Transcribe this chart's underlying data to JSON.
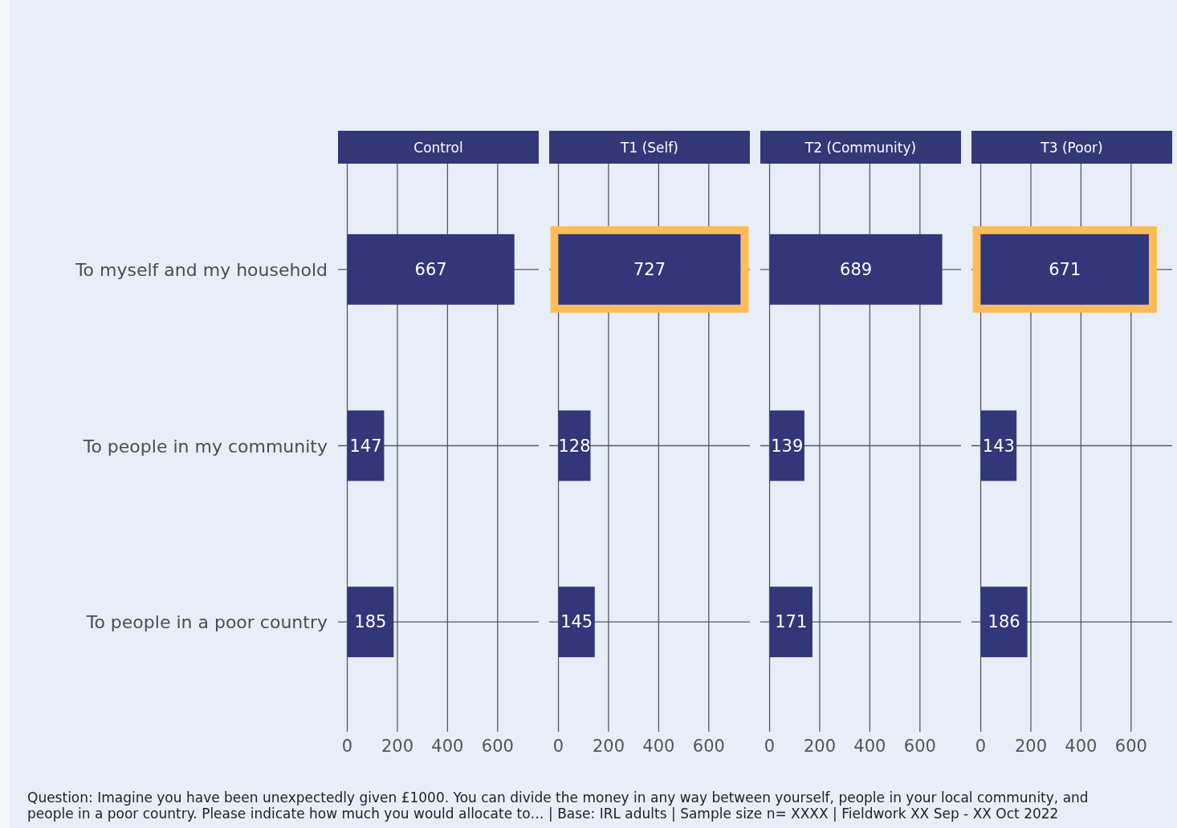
{
  "chart_data": [
    {
      "type": "bar",
      "orientation": "horizontal",
      "title": "Control",
      "categories": [
        "To myself and my household",
        "To people in my community",
        "To people in a poor country"
      ],
      "values": [
        667,
        147,
        185
      ],
      "color": "#32377a",
      "xlim": [
        -37,
        764
      ],
      "xticks": [
        0,
        200,
        400,
        600
      ],
      "grid": true,
      "data_labels": true,
      "annotations": [
        "Question: Imagine you have been unexpectedly given £1000. You can divide the money in any way between yourself, people in your local community, and people in a poor country. Please indicate how much you would allocate to… | Base: IRL adults | Sample size n= XXXX | Fieldwork XX Sep - XX Oct 2022"
      ]
    },
    {
      "type": "bar",
      "orientation": "horizontal",
      "title": "T1 (Self)",
      "categories": [
        null,
        null,
        null
      ],
      "values": [
        727,
        128,
        145
      ],
      "color": "#32377a",
      "xlim": [
        -37,
        764
      ],
      "xticks": [
        0,
        200,
        400,
        600
      ],
      "grid": true,
      "data_labels": true
    },
    {
      "type": "bar",
      "orientation": "horizontal",
      "title": "T2 (Community)",
      "categories": [
        null,
        null,
        null
      ],
      "values": [
        689,
        139,
        171
      ],
      "color": "#32377a",
      "xlim": [
        -37,
        764
      ],
      "xticks": [
        0,
        200,
        400,
        600
      ],
      "grid": true,
      "data_labels": true
    },
    {
      "type": "bar",
      "orientation": "horizontal",
      "title": "T3 (Poor)",
      "categories": [
        null,
        null,
        null
      ],
      "values": [
        671,
        143,
        186
      ],
      "color": "#32377a",
      "xlim": [
        -37,
        764
      ],
      "xticks": [
        0,
        200,
        400,
        600
      ],
      "grid": true,
      "data_labels": true
    }
  ]
}
